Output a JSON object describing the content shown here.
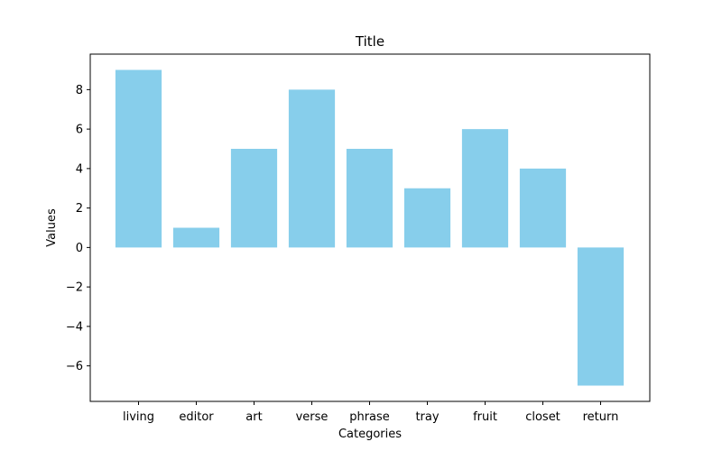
{
  "chart_data": {
    "type": "bar",
    "title": "Title",
    "xlabel": "Categories",
    "ylabel": "Values",
    "categories": [
      "living",
      "editor",
      "art",
      "verse",
      "phrase",
      "tray",
      "fruit",
      "closet",
      "return"
    ],
    "values": [
      9,
      1,
      5,
      8,
      5,
      3,
      6,
      4,
      -7
    ],
    "ylim": [
      -7.8,
      9.8
    ],
    "yticks": [
      -6,
      -4,
      -2,
      0,
      2,
      4,
      6,
      8
    ],
    "ytick_labels": [
      "−6",
      "−4",
      "−2",
      "0",
      "2",
      "4",
      "6",
      "8"
    ],
    "bar_color": "#87ceeb",
    "grid": false,
    "legend": "none"
  }
}
